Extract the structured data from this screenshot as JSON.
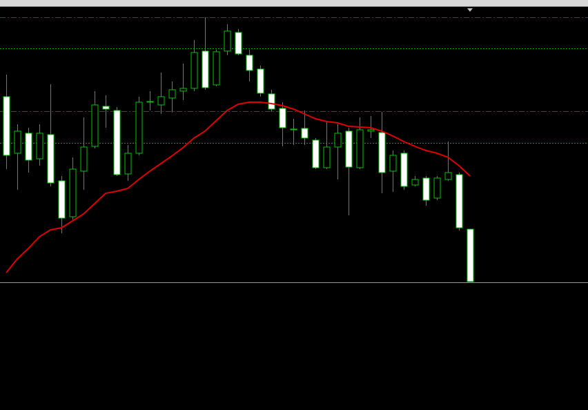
{
  "chart_data": {
    "type": "candlestick",
    "background": "#000000",
    "up_color": "#000000",
    "down_color": "#ffffff",
    "wick_color": "#00c800",
    "categories": [
      null,
      null,
      null,
      null,
      null,
      null,
      null,
      null,
      null,
      null,
      null,
      null,
      null,
      null,
      null,
      null,
      null,
      null,
      null,
      null,
      null,
      null,
      null,
      null,
      null,
      null,
      null,
      null,
      null,
      null,
      null,
      null,
      null,
      null,
      null,
      null,
      null,
      null,
      null,
      null,
      null,
      null,
      null
    ],
    "open": [
      269,
      187,
      216,
      179,
      214,
      147,
      95,
      161,
      197,
      255,
      249,
      157,
      187,
      261,
      257,
      267,
      277,
      281,
      335,
      286,
      335,
      362,
      329,
      309,
      273,
      252,
      221,
      223,
      206,
      166,
      196,
      219,
      166,
      219,
      217,
      161,
      187,
      141,
      151,
      122,
      149,
      156,
      77
    ],
    "high": [
      301,
      229,
      224,
      229,
      287,
      154,
      181,
      239,
      277,
      271,
      254,
      199,
      269,
      277,
      304,
      291,
      317,
      351,
      384,
      337,
      374,
      367,
      337,
      314,
      279,
      261,
      237,
      249,
      209,
      234,
      229,
      224,
      239,
      241,
      247,
      191,
      191,
      154,
      154,
      154,
      204,
      159,
      77
    ],
    "low": [
      164,
      134,
      159,
      169,
      139,
      71,
      91,
      134,
      194,
      224,
      154,
      147,
      184,
      249,
      244,
      246,
      264,
      277,
      279,
      284,
      329,
      329,
      291,
      269,
      247,
      197,
      199,
      199,
      164,
      164,
      149,
      97,
      164,
      209,
      129,
      131,
      134,
      139,
      111,
      119,
      147,
      75,
      1
    ],
    "close": [
      184,
      219,
      177,
      216,
      144,
      93,
      164,
      196,
      257,
      251,
      156,
      187,
      261,
      262,
      269,
      279,
      281,
      333,
      282,
      334,
      364,
      331,
      307,
      274,
      251,
      224,
      222,
      209,
      166,
      196,
      216,
      167,
      221,
      221,
      159,
      184,
      139,
      149,
      119,
      151,
      159,
      79,
      1
    ],
    "series": [
      {
        "color": "#e00000",
        "values": [
          14,
          34,
          49,
          66,
          76,
          79,
          89,
          99,
          114,
          129,
          132,
          136,
          149,
          161,
          172,
          183,
          195,
          209,
          219,
          234,
          249,
          258,
          261,
          261,
          259,
          256,
          251,
          244,
          237,
          233,
          231,
          226,
          225,
          224,
          219,
          212,
          204,
          197,
          191,
          187,
          181,
          169,
          154
        ]
      }
    ],
    "levels": [
      {
        "value": 384,
        "color": "#d00000",
        "style": "dashdot"
      },
      {
        "value": 248,
        "color": "#d00000",
        "style": "dashdot"
      },
      {
        "value": 339,
        "color": "#00b000",
        "style": "dotted"
      },
      {
        "value": 202,
        "color": "#00b000",
        "style": "dotted"
      }
    ],
    "ylim": [
      0,
      399
    ]
  }
}
